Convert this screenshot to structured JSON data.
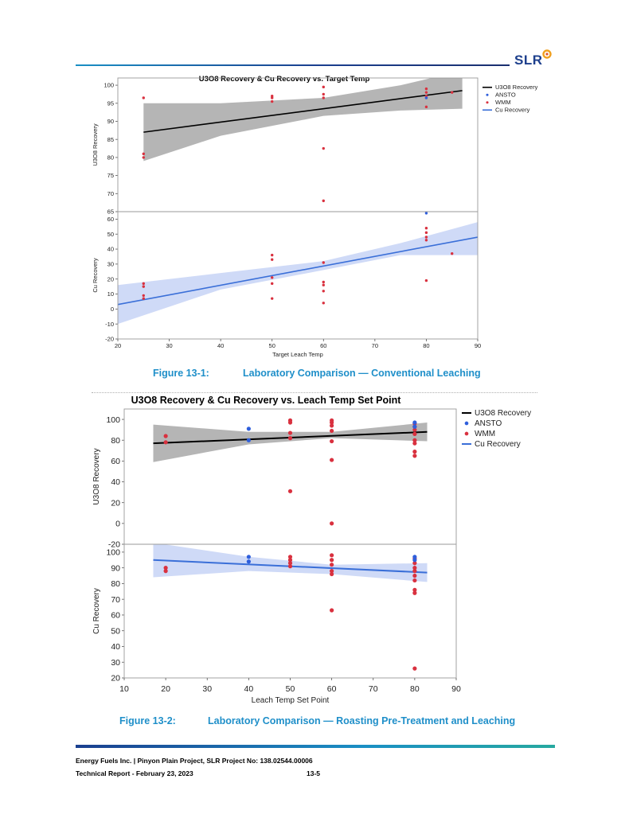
{
  "header": {
    "logo_text": "SLR"
  },
  "chart_data": [
    {
      "type": "scatter",
      "title": "U3O8 Recovery & Cu Recovery vs. Target Temp",
      "xlabel": "Target Leach Temp",
      "xlim": [
        20,
        90
      ],
      "xticks": [
        20,
        30,
        40,
        50,
        60,
        70,
        80,
        90
      ],
      "legend": [
        "U3O8 Recovery",
        "ANSTO",
        "WMM",
        "Cu Recovery"
      ],
      "legend_position": "top-right",
      "colors": {
        "fit_u3o8": "#000000",
        "band_u3o8": "#a8a8a8",
        "fit_cu": "#3a6fd8",
        "band_cu": "#bfcdf4",
        "ansto": "#2f5fdc",
        "wmm": "#d9313f"
      },
      "panels": [
        {
          "ylabel": "U3O8 Recovery",
          "ylim": [
            65,
            102
          ],
          "yticks": [
            65,
            70,
            75,
            80,
            85,
            90,
            95,
            100
          ],
          "fit": [
            [
              25,
              87
            ],
            [
              87,
              98.5
            ]
          ],
          "band_upper": [
            [
              25,
              95
            ],
            [
              40,
              95
            ],
            [
              60,
              96.5
            ],
            [
              75,
              100
            ],
            [
              87,
              104
            ]
          ],
          "band_lower": [
            [
              25,
              79
            ],
            [
              40,
              86
            ],
            [
              60,
              91.5
            ],
            [
              75,
              93
            ],
            [
              87,
              93.5
            ]
          ],
          "ansto": [
            [
              80,
              96.5
            ]
          ],
          "wmm": [
            [
              25,
              96.5
            ],
            [
              25,
              81
            ],
            [
              25,
              80
            ],
            [
              50,
              97
            ],
            [
              50,
              96.5
            ],
            [
              50,
              95.5
            ],
            [
              60,
              99.5
            ],
            [
              60,
              97.5
            ],
            [
              60,
              96.5
            ],
            [
              60,
              82.5
            ],
            [
              60,
              68
            ],
            [
              80,
              99
            ],
            [
              80,
              98
            ],
            [
              80,
              97
            ],
            [
              80,
              96.5
            ],
            [
              80,
              94
            ],
            [
              85,
              98
            ]
          ]
        },
        {
          "ylabel": "Cu Recovery",
          "ylim": [
            -20,
            65
          ],
          "yticks": [
            -20,
            -10,
            0,
            10,
            20,
            30,
            40,
            50,
            60
          ],
          "fit": [
            [
              20,
              3
            ],
            [
              90,
              48
            ]
          ],
          "band_upper": [
            [
              20,
              16
            ],
            [
              40,
              24
            ],
            [
              60,
              32
            ],
            [
              75,
              44
            ],
            [
              90,
              58
            ]
          ],
          "band_lower": [
            [
              20,
              -10
            ],
            [
              40,
              13
            ],
            [
              60,
              26
            ],
            [
              75,
              36
            ],
            [
              90,
              36
            ]
          ],
          "ansto": [
            [
              80,
              64
            ]
          ],
          "wmm": [
            [
              25,
              17
            ],
            [
              25,
              15
            ],
            [
              25,
              9
            ],
            [
              25,
              7
            ],
            [
              50,
              36
            ],
            [
              50,
              33
            ],
            [
              50,
              21
            ],
            [
              50,
              17
            ],
            [
              50,
              7
            ],
            [
              60,
              31
            ],
            [
              60,
              18
            ],
            [
              60,
              16
            ],
            [
              60,
              12
            ],
            [
              60,
              4
            ],
            [
              80,
              54
            ],
            [
              80,
              51
            ],
            [
              80,
              48
            ],
            [
              80,
              46
            ],
            [
              80,
              19
            ],
            [
              85,
              37
            ]
          ]
        }
      ]
    },
    {
      "type": "scatter",
      "title": "U3O8 Recovery & Cu Recovery vs. Leach Temp Set Point",
      "xlabel": "Leach Temp Set Point",
      "xlim": [
        10,
        90
      ],
      "xticks": [
        10,
        20,
        30,
        40,
        50,
        60,
        70,
        80,
        90
      ],
      "legend": [
        "U3O8 Recovery",
        "ANSTO",
        "WMM",
        "Cu Recovery"
      ],
      "legend_position": "top-right",
      "colors": {
        "fit_u3o8": "#000000",
        "band_u3o8": "#a8a8a8",
        "fit_cu": "#3a6fd8",
        "band_cu": "#bfcdf4",
        "ansto": "#2f5fdc",
        "wmm": "#d9313f"
      },
      "panels": [
        {
          "ylabel": "U3O8 Recovery",
          "ylim": [
            -20,
            110
          ],
          "yticks": [
            -20,
            0,
            20,
            40,
            60,
            80,
            100
          ],
          "fit": [
            [
              17,
              77
            ],
            [
              83,
              88
            ]
          ],
          "band_upper": [
            [
              17,
              95
            ],
            [
              40,
              88
            ],
            [
              60,
              88
            ],
            [
              83,
              97
            ]
          ],
          "band_lower": [
            [
              17,
              59
            ],
            [
              40,
              76
            ],
            [
              60,
              82
            ],
            [
              83,
              79
            ]
          ],
          "ansto": [
            [
              40,
              91
            ],
            [
              40,
              80
            ],
            [
              80,
              97
            ],
            [
              80,
              93
            ]
          ],
          "wmm": [
            [
              20,
              84
            ],
            [
              20,
              78
            ],
            [
              50,
              99
            ],
            [
              50,
              97
            ],
            [
              50,
              87
            ],
            [
              50,
              82
            ],
            [
              50,
              31
            ],
            [
              60,
              99
            ],
            [
              60,
              97
            ],
            [
              60,
              94
            ],
            [
              60,
              89
            ],
            [
              60,
              79
            ],
            [
              60,
              61
            ],
            [
              60,
              0
            ],
            [
              80,
              96
            ],
            [
              80,
              93
            ],
            [
              80,
              90
            ],
            [
              80,
              86
            ],
            [
              80,
              80
            ],
            [
              80,
              77
            ],
            [
              80,
              69
            ],
            [
              80,
              65
            ]
          ]
        },
        {
          "ylabel": "Cu Recovery",
          "ylim": [
            20,
            105
          ],
          "yticks": [
            20,
            30,
            40,
            50,
            60,
            70,
            80,
            90,
            100
          ],
          "fit": [
            [
              17,
              95
            ],
            [
              83,
              87
            ]
          ],
          "band_upper": [
            [
              17,
              106
            ],
            [
              40,
              97
            ],
            [
              60,
              92
            ],
            [
              83,
              93
            ]
          ],
          "band_lower": [
            [
              17,
              84
            ],
            [
              40,
              88
            ],
            [
              60,
              86
            ],
            [
              83,
              81
            ]
          ],
          "ansto": [
            [
              40,
              97
            ],
            [
              40,
              94
            ],
            [
              80,
              97
            ],
            [
              80,
              95
            ]
          ],
          "wmm": [
            [
              20,
              90
            ],
            [
              20,
              88
            ],
            [
              50,
              97
            ],
            [
              50,
              95
            ],
            [
              50,
              93
            ],
            [
              50,
              91
            ],
            [
              60,
              98
            ],
            [
              60,
              95
            ],
            [
              60,
              92
            ],
            [
              60,
              88
            ],
            [
              60,
              86
            ],
            [
              60,
              63
            ],
            [
              80,
              96
            ],
            [
              80,
              93
            ],
            [
              80,
              90
            ],
            [
              80,
              88
            ],
            [
              80,
              85
            ],
            [
              80,
              82
            ],
            [
              80,
              76
            ],
            [
              80,
              74
            ],
            [
              80,
              26
            ]
          ]
        }
      ]
    }
  ],
  "captions": {
    "fig1_number": "Figure 13-1:",
    "fig1_text": "Laboratory Comparison — Conventional Leaching",
    "fig2_number": "Figure 13-2:",
    "fig2_text": "Laboratory Comparison — Roasting Pre-Treatment and Leaching"
  },
  "footer": {
    "line1": "Energy Fuels Inc. | Pinyon Plain Project, SLR Project No:  138.02544.00006",
    "line2_left": "Technical Report -  February 23, 2023",
    "page_number": "13-5"
  }
}
